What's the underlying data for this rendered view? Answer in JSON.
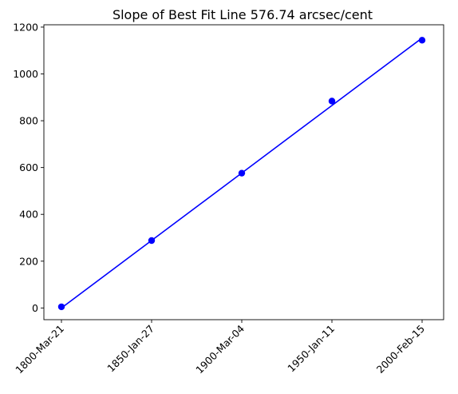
{
  "chart_data": {
    "type": "line",
    "title": "Slope of Best Fit Line 576.74 arcsec/cent",
    "xlabel": "",
    "ylabel": "",
    "categories": [
      "1800-Mar-21",
      "1850-Jan-27",
      "1900-Mar-04",
      "1950-Jan-11",
      "2000-Feb-15"
    ],
    "series": [
      {
        "kind": "scatter",
        "values": [
          5,
          288,
          576,
          884,
          1144
        ],
        "color": "#0000ff"
      },
      {
        "kind": "fit-line",
        "values": [
          0,
          288.4,
          576.7,
          865.1,
          1153.5
        ],
        "color": "#0000ff"
      }
    ],
    "yticks": [
      0,
      200,
      400,
      600,
      800,
      1000,
      1200
    ],
    "ylim": [
      -50,
      1210
    ],
    "grid": false,
    "legend": "none"
  }
}
